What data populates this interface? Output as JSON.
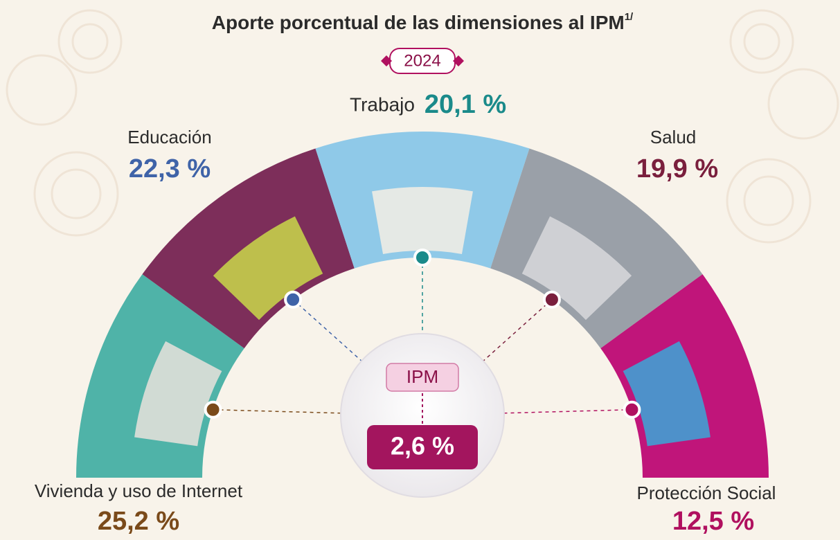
{
  "header": {
    "title": "Aporte porcentual de las dimensiones al IPM",
    "title_note": "1/",
    "year": "2024"
  },
  "dimensions": [
    {
      "label": "Vivienda y uso de Internet",
      "value": "25,2 %"
    },
    {
      "label": "Educación",
      "value": "22,3 %"
    },
    {
      "label": "Trabajo",
      "value": "20,1 %"
    },
    {
      "label": "Salud",
      "value": "19,9 %"
    },
    {
      "label": "Protección Social",
      "value": "12,5 %"
    }
  ],
  "center": {
    "label": "IPM",
    "value": "2,6 %"
  }
}
